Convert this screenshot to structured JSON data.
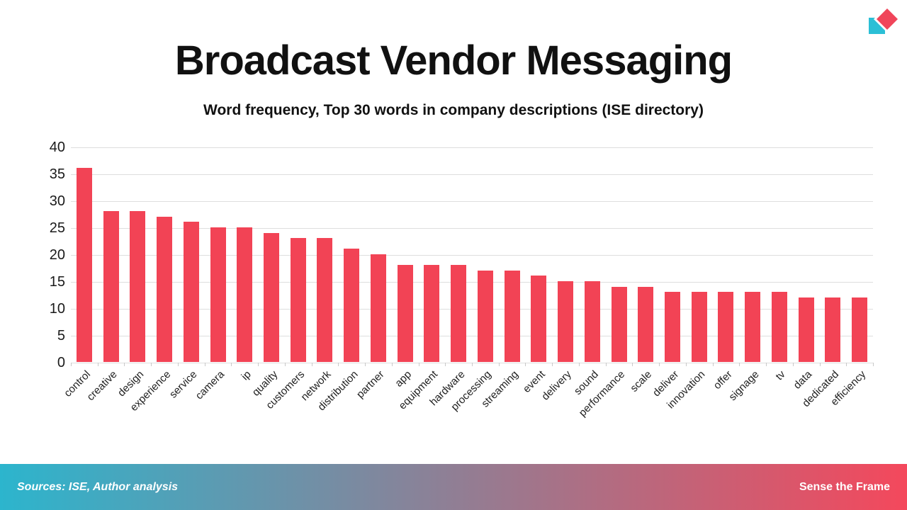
{
  "header": {
    "title": "Broadcast Vendor Messaging",
    "subtitle": "Word frequency, Top 30 words in company descriptions (ISE directory)"
  },
  "chart_data": {
    "type": "bar",
    "title": "Broadcast Vendor Messaging",
    "subtitle": "Word frequency, Top 30 words in company descriptions (ISE directory)",
    "categories": [
      "control",
      "creative",
      "design",
      "experience",
      "service",
      "camera",
      "ip",
      "quality",
      "customers",
      "network",
      "distribution",
      "partner",
      "app",
      "equipment",
      "hardware",
      "processing",
      "streaming",
      "event",
      "delivery",
      "sound",
      "performance",
      "scale",
      "deliver",
      "innovation",
      "offer",
      "signage",
      "tv",
      "data",
      "dedicated",
      "efficiency"
    ],
    "values": [
      36,
      28,
      28,
      27,
      26,
      25,
      25,
      24,
      23,
      23,
      21,
      20,
      18,
      18,
      18,
      17,
      17,
      16,
      15,
      15,
      14,
      14,
      13,
      13,
      13,
      13,
      13,
      12,
      12,
      12
    ],
    "xlabel": "",
    "ylabel": "",
    "ylim": [
      0,
      40
    ],
    "ytick_step": 5,
    "grid": true,
    "legend": "none",
    "bar_color": "#F24355",
    "gridline_color": "#dedede",
    "x_label_rotation_deg": 45
  },
  "logo": {
    "name": "sense-the-frame-logo",
    "cyan": "#2BBFD6",
    "red": "#F0455A"
  },
  "footer": {
    "sources": "Sources: ISE, Author analysis",
    "brand": "Sense the Frame",
    "gradient_left": "#2CB5CD",
    "gradient_right": "#F4485C"
  }
}
